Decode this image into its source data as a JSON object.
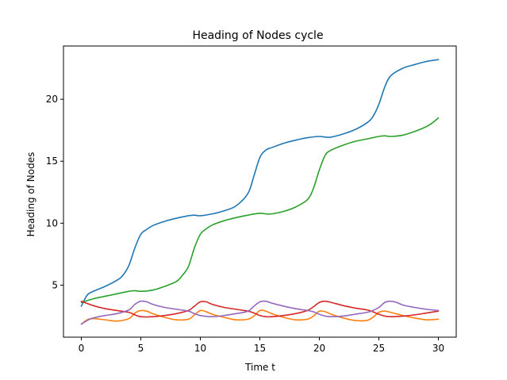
{
  "chart_data": {
    "type": "line",
    "title": "Heading of Nodes cycle",
    "xlabel": "Time t",
    "ylabel": "Heading of Nodes",
    "xlim": [
      -1.5,
      31.5
    ],
    "ylim": [
      0.8,
      24.3
    ],
    "xticks": [
      0,
      5,
      10,
      15,
      20,
      25,
      30
    ],
    "yticks": [
      5,
      10,
      15,
      20
    ],
    "grid": false,
    "legend": "none",
    "series": [
      {
        "color": "#1f77b4",
        "points": [
          [
            0,
            3.3
          ],
          [
            0.5,
            4.2
          ],
          [
            1,
            4.5
          ],
          [
            2,
            4.9
          ],
          [
            3,
            5.4
          ],
          [
            3.5,
            5.8
          ],
          [
            4,
            6.6
          ],
          [
            4.5,
            8.0
          ],
          [
            5,
            9.1
          ],
          [
            5.5,
            9.5
          ],
          [
            6,
            9.8
          ],
          [
            7,
            10.15
          ],
          [
            8,
            10.4
          ],
          [
            9,
            10.6
          ],
          [
            9.5,
            10.65
          ],
          [
            10,
            10.6
          ],
          [
            11,
            10.75
          ],
          [
            12,
            11.0
          ],
          [
            13,
            11.4
          ],
          [
            14,
            12.4
          ],
          [
            14.5,
            13.8
          ],
          [
            15,
            15.3
          ],
          [
            15.5,
            15.9
          ],
          [
            16,
            16.1
          ],
          [
            17,
            16.45
          ],
          [
            18,
            16.7
          ],
          [
            19,
            16.9
          ],
          [
            20,
            17.0
          ],
          [
            20.5,
            16.95
          ],
          [
            21,
            16.95
          ],
          [
            22,
            17.2
          ],
          [
            23,
            17.55
          ],
          [
            24,
            18.1
          ],
          [
            24.5,
            18.6
          ],
          [
            25,
            19.6
          ],
          [
            25.5,
            21.0
          ],
          [
            26,
            21.9
          ],
          [
            27,
            22.5
          ],
          [
            28,
            22.8
          ],
          [
            29,
            23.05
          ],
          [
            30,
            23.2
          ]
        ]
      },
      {
        "color": "#ff7f0e",
        "points": [
          [
            0,
            1.85
          ],
          [
            0.5,
            2.2
          ],
          [
            1,
            2.3
          ],
          [
            2,
            2.2
          ],
          [
            3,
            2.1
          ],
          [
            4,
            2.3
          ],
          [
            4.5,
            2.75
          ],
          [
            5,
            2.95
          ],
          [
            5.5,
            2.9
          ],
          [
            6,
            2.7
          ],
          [
            7,
            2.4
          ],
          [
            8,
            2.2
          ],
          [
            9,
            2.25
          ],
          [
            9.5,
            2.6
          ],
          [
            10,
            2.95
          ],
          [
            10.5,
            2.85
          ],
          [
            11,
            2.65
          ],
          [
            12,
            2.4
          ],
          [
            13,
            2.2
          ],
          [
            14,
            2.25
          ],
          [
            14.5,
            2.5
          ],
          [
            15,
            2.95
          ],
          [
            15.5,
            2.9
          ],
          [
            16,
            2.7
          ],
          [
            17,
            2.4
          ],
          [
            18,
            2.2
          ],
          [
            19,
            2.25
          ],
          [
            19.5,
            2.5
          ],
          [
            20,
            2.9
          ],
          [
            20.5,
            2.85
          ],
          [
            21,
            2.65
          ],
          [
            22,
            2.35
          ],
          [
            23,
            2.15
          ],
          [
            24,
            2.15
          ],
          [
            24.5,
            2.4
          ],
          [
            25,
            2.8
          ],
          [
            25.5,
            2.9
          ],
          [
            26,
            2.8
          ],
          [
            27,
            2.55
          ],
          [
            28,
            2.35
          ],
          [
            29,
            2.2
          ],
          [
            30,
            2.25
          ]
        ]
      },
      {
        "color": "#2ca02c",
        "points": [
          [
            0,
            3.6
          ],
          [
            1,
            3.9
          ],
          [
            2,
            4.1
          ],
          [
            3,
            4.3
          ],
          [
            4,
            4.5
          ],
          [
            4.5,
            4.55
          ],
          [
            5,
            4.5
          ],
          [
            6,
            4.6
          ],
          [
            7,
            4.9
          ],
          [
            8,
            5.3
          ],
          [
            8.5,
            5.8
          ],
          [
            9,
            6.5
          ],
          [
            9.5,
            8.0
          ],
          [
            10,
            9.1
          ],
          [
            10.5,
            9.55
          ],
          [
            11,
            9.85
          ],
          [
            12,
            10.2
          ],
          [
            13,
            10.45
          ],
          [
            14,
            10.65
          ],
          [
            15,
            10.8
          ],
          [
            15.5,
            10.75
          ],
          [
            16,
            10.75
          ],
          [
            17,
            10.95
          ],
          [
            18,
            11.3
          ],
          [
            19,
            11.9
          ],
          [
            19.5,
            12.8
          ],
          [
            20,
            14.3
          ],
          [
            20.5,
            15.5
          ],
          [
            21,
            15.9
          ],
          [
            22,
            16.3
          ],
          [
            23,
            16.6
          ],
          [
            24,
            16.8
          ],
          [
            25,
            17.0
          ],
          [
            25.5,
            17.05
          ],
          [
            26,
            17.0
          ],
          [
            27,
            17.1
          ],
          [
            28,
            17.4
          ],
          [
            29,
            17.8
          ],
          [
            29.5,
            18.1
          ],
          [
            30,
            18.5
          ]
        ]
      },
      {
        "color": "#d62728",
        "points": [
          [
            0,
            3.7
          ],
          [
            1,
            3.35
          ],
          [
            2,
            3.1
          ],
          [
            3,
            2.95
          ],
          [
            4,
            2.8
          ],
          [
            4.5,
            2.6
          ],
          [
            5,
            2.45
          ],
          [
            6,
            2.45
          ],
          [
            7,
            2.55
          ],
          [
            8,
            2.7
          ],
          [
            9,
            2.95
          ],
          [
            9.5,
            3.3
          ],
          [
            10,
            3.65
          ],
          [
            10.5,
            3.65
          ],
          [
            11,
            3.45
          ],
          [
            12,
            3.2
          ],
          [
            13,
            3.05
          ],
          [
            14,
            2.9
          ],
          [
            14.5,
            2.75
          ],
          [
            15,
            2.55
          ],
          [
            15.5,
            2.45
          ],
          [
            16,
            2.45
          ],
          [
            17,
            2.55
          ],
          [
            18,
            2.7
          ],
          [
            19,
            2.95
          ],
          [
            19.5,
            3.25
          ],
          [
            20,
            3.6
          ],
          [
            20.5,
            3.7
          ],
          [
            21,
            3.6
          ],
          [
            22,
            3.35
          ],
          [
            23,
            3.15
          ],
          [
            24,
            3.0
          ],
          [
            24.5,
            2.85
          ],
          [
            25,
            2.65
          ],
          [
            25.5,
            2.5
          ],
          [
            26,
            2.45
          ],
          [
            27,
            2.5
          ],
          [
            28,
            2.6
          ],
          [
            29,
            2.75
          ],
          [
            30,
            2.9
          ]
        ]
      },
      {
        "color": "#9467bd",
        "points": [
          [
            0,
            1.85
          ],
          [
            0.5,
            2.15
          ],
          [
            1,
            2.35
          ],
          [
            2,
            2.55
          ],
          [
            3,
            2.7
          ],
          [
            4,
            3.0
          ],
          [
            4.5,
            3.45
          ],
          [
            5,
            3.7
          ],
          [
            5.5,
            3.65
          ],
          [
            6,
            3.45
          ],
          [
            7,
            3.2
          ],
          [
            8,
            3.05
          ],
          [
            9,
            2.9
          ],
          [
            9.5,
            2.7
          ],
          [
            10,
            2.55
          ],
          [
            11,
            2.45
          ],
          [
            12,
            2.55
          ],
          [
            13,
            2.7
          ],
          [
            14,
            2.9
          ],
          [
            14.5,
            3.3
          ],
          [
            15,
            3.65
          ],
          [
            15.5,
            3.7
          ],
          [
            16,
            3.55
          ],
          [
            17,
            3.3
          ],
          [
            18,
            3.1
          ],
          [
            19,
            2.95
          ],
          [
            19.5,
            2.85
          ],
          [
            20,
            2.65
          ],
          [
            20.5,
            2.5
          ],
          [
            21,
            2.45
          ],
          [
            22,
            2.5
          ],
          [
            23,
            2.65
          ],
          [
            24,
            2.8
          ],
          [
            24.5,
            2.95
          ],
          [
            25,
            3.2
          ],
          [
            25.5,
            3.6
          ],
          [
            26,
            3.7
          ],
          [
            26.5,
            3.6
          ],
          [
            27,
            3.4
          ],
          [
            28,
            3.2
          ],
          [
            29,
            3.05
          ],
          [
            30,
            2.95
          ]
        ]
      }
    ]
  }
}
